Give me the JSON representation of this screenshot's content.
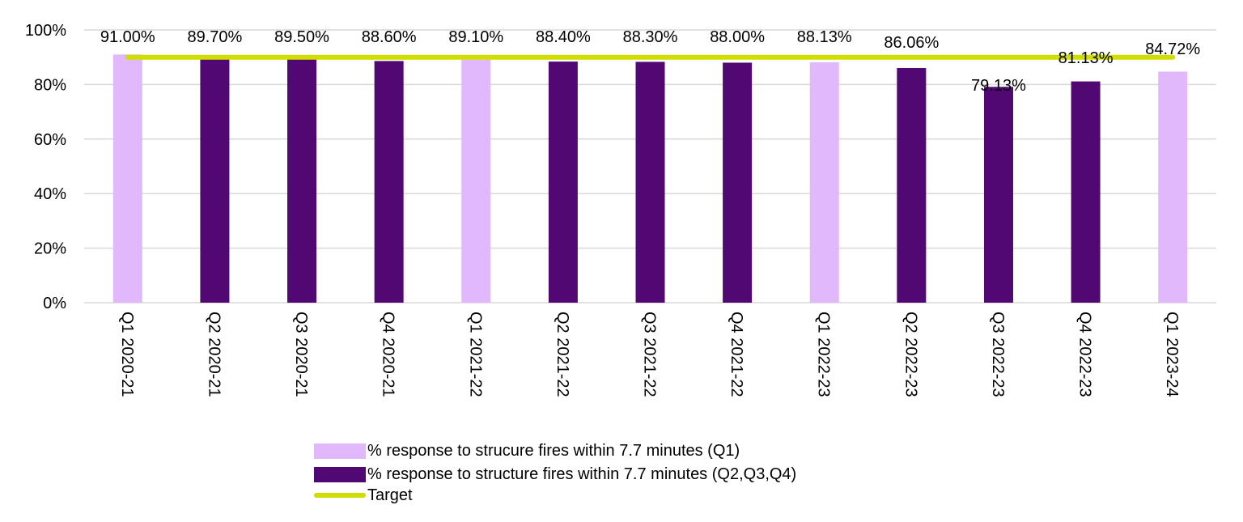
{
  "chart_data": {
    "type": "bar",
    "categories": [
      "Q1 2020-21",
      "Q2 2020-21",
      "Q3 2020-21",
      "Q4 2020-21",
      "Q1 2021-22",
      "Q2 2021-22",
      "Q3 2021-22",
      "Q4 2021-22",
      "Q1 2022-23",
      "Q2 2022-23",
      "Q3 2022-23",
      "Q4 2022-23",
      "Q1 2023-24"
    ],
    "series": [
      {
        "name": "% response to strucure fires within 7.7 minutes (Q1)",
        "color": "#e0b8fb",
        "values": [
          91.0,
          null,
          null,
          null,
          89.1,
          null,
          null,
          null,
          88.13,
          null,
          null,
          null,
          84.72
        ]
      },
      {
        "name": "% response to structure fires within 7.7 minutes (Q2,Q3,Q4)",
        "color": "#520872",
        "values": [
          null,
          89.7,
          89.5,
          88.6,
          null,
          88.4,
          88.3,
          88.0,
          null,
          86.06,
          79.13,
          81.13,
          null
        ]
      },
      {
        "name": "Target",
        "type": "line",
        "color": "#d0dd00",
        "values": [
          90,
          90,
          90,
          90,
          90,
          90,
          90,
          90,
          90,
          90,
          90,
          90,
          90
        ]
      }
    ],
    "data_labels": [
      "91.00%",
      "89.70%",
      "89.50%",
      "88.60%",
      "89.10%",
      "88.40%",
      "88.30%",
      "88.00%",
      "88.13%",
      "86.06%",
      "79.13%",
      "81.13%",
      "84.72%"
    ],
    "y_ticks": [
      "0%",
      "20%",
      "40%",
      "60%",
      "80%",
      "100%"
    ],
    "ylim": [
      0,
      100
    ],
    "grid": true,
    "legend": "bottom",
    "title": "",
    "xlabel": "",
    "ylabel": ""
  }
}
